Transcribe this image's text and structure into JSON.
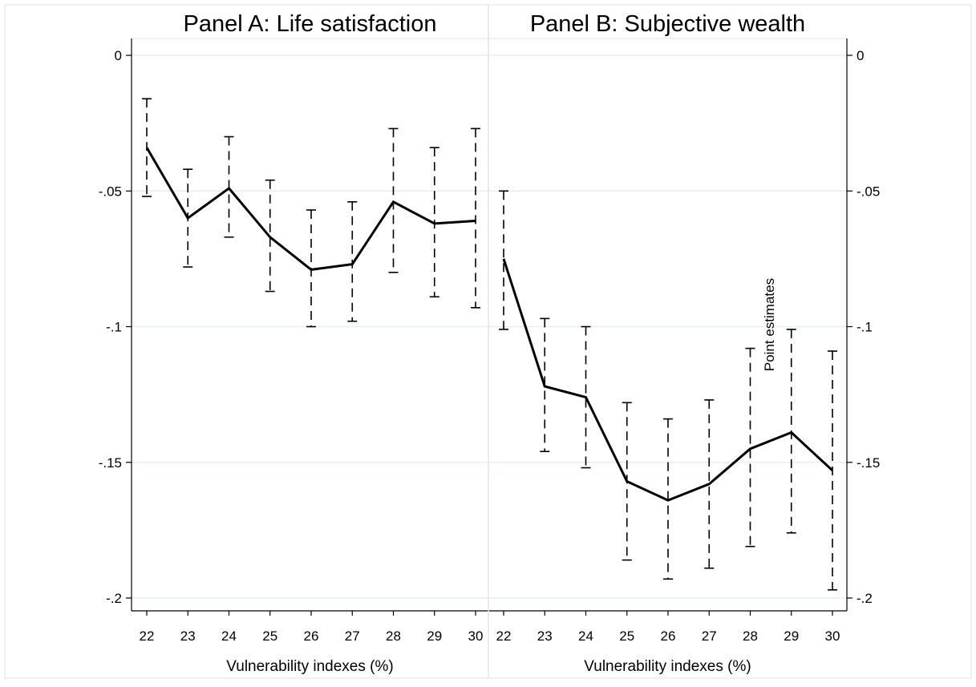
{
  "chart_data": [
    {
      "type": "line",
      "title": "Panel A: Life satisfaction",
      "xlabel": "Vulnerability indexes (%)",
      "ylabel": "",
      "x": [
        22,
        23,
        24,
        25,
        26,
        27,
        28,
        29,
        30
      ],
      "ylim": [
        -0.2,
        0
      ],
      "yticks": [
        0,
        -0.05,
        -0.1,
        -0.15,
        -0.2
      ],
      "ytick_labels": [
        "0",
        "-.05",
        "-.1",
        "-.15",
        "-.2"
      ],
      "y_axis_side": "left",
      "grid": true,
      "series": [
        {
          "values": [
            -0.034,
            -0.06,
            -0.049,
            -0.067,
            -0.079,
            -0.077,
            -0.054,
            -0.062,
            -0.061
          ],
          "lower": [
            -0.052,
            -0.078,
            -0.067,
            -0.087,
            -0.1,
            -0.098,
            -0.08,
            -0.089,
            -0.093
          ],
          "upper": [
            -0.016,
            -0.042,
            -0.03,
            -0.046,
            -0.057,
            -0.054,
            -0.027,
            -0.034,
            -0.027
          ]
        }
      ],
      "annotations": []
    },
    {
      "type": "line",
      "title": "Panel B: Subjective wealth",
      "xlabel": "Vulnerability indexes (%)",
      "ylabel": "",
      "x": [
        22,
        23,
        24,
        25,
        26,
        27,
        28,
        29,
        30
      ],
      "ylim": [
        -0.2,
        0
      ],
      "yticks": [
        0,
        -0.05,
        -0.1,
        -0.15,
        -0.2
      ],
      "ytick_labels": [
        "0",
        "-.05",
        "-.1",
        "-.15",
        "-.2"
      ],
      "y_axis_side": "right",
      "grid": true,
      "series": [
        {
          "values": [
            -0.075,
            -0.122,
            -0.126,
            -0.157,
            -0.164,
            -0.158,
            -0.145,
            -0.139,
            -0.153
          ],
          "lower": [
            -0.101,
            -0.146,
            -0.152,
            -0.186,
            -0.193,
            -0.189,
            -0.181,
            -0.176,
            -0.197
          ],
          "upper": [
            -0.05,
            -0.097,
            -0.1,
            -0.128,
            -0.134,
            -0.127,
            -0.108,
            -0.101,
            -0.109
          ]
        }
      ],
      "annotations": [
        "Point estimates"
      ]
    }
  ]
}
